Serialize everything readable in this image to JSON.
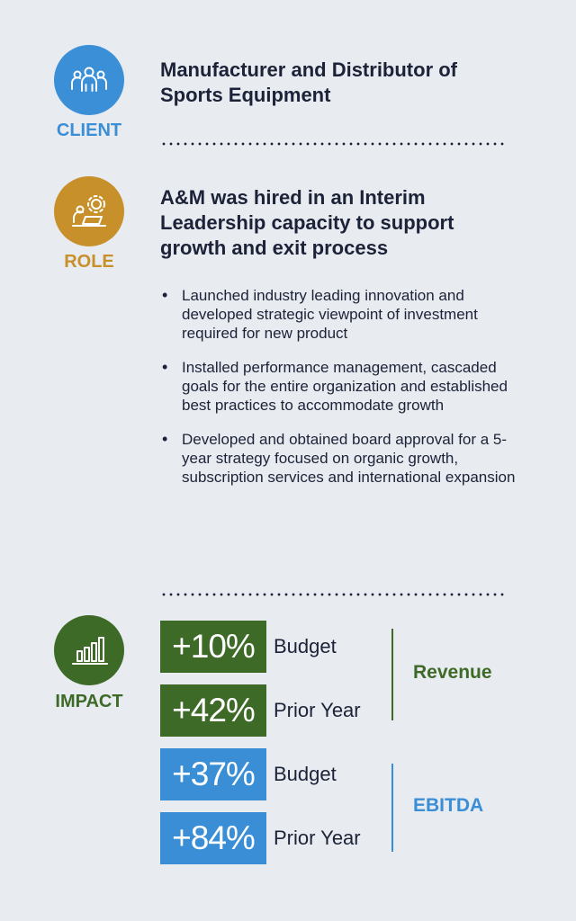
{
  "colors": {
    "client": "#3b8fd6",
    "role": "#c8902a",
    "impact": "#3e6a28",
    "ebitda": "#3a8ed6",
    "text": "#1c2238",
    "background": "#e8ebf0"
  },
  "client": {
    "icon": "people-group-icon",
    "label": "CLIENT",
    "title_line1": "Manufacturer and Distributor of",
    "title_line2": "Sports Equipment"
  },
  "role": {
    "icon": "gear-laptop-icon",
    "label": "ROLE",
    "title_line1": "A&M was hired in an Interim",
    "title_line2": "Leadership capacity to support",
    "title_line3": "growth and exit process",
    "bullets": [
      "Launched industry leading innovation and developed strategic viewpoint of investment required for new product",
      "Installed performance management, cascaded goals for the entire organization and established best practices to accommodate growth",
      "Developed and obtained board approval for a 5-year strategy focused on organic growth, subscription services and international expansion"
    ]
  },
  "impact": {
    "icon": "bar-chart-icon",
    "label": "IMPACT",
    "revenue": {
      "label": "Revenue",
      "metrics": [
        {
          "value": "+10%",
          "desc": "Budget"
        },
        {
          "value": "+42%",
          "desc": "Prior Year"
        }
      ]
    },
    "ebitda": {
      "label": "EBITDA",
      "metrics": [
        {
          "value": "+37%",
          "desc": "Budget"
        },
        {
          "value": "+84%",
          "desc": "Prior Year"
        }
      ]
    }
  }
}
